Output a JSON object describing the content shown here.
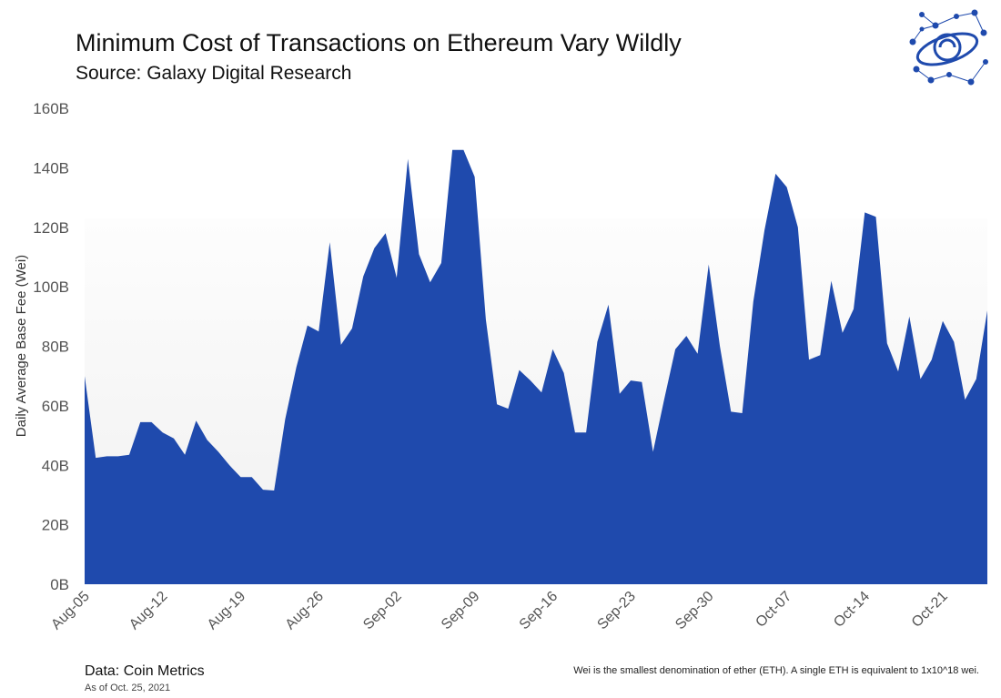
{
  "chart_data": {
    "type": "area",
    "title": "Minimum Cost of Transactions on Ethereum Vary Wildly",
    "subtitle": "Source: Galaxy Digital Research",
    "ylabel": "Daily Average Base Fee  (Wei)",
    "xlabel": "",
    "x_start": "2021-08-05",
    "x_end": "2021-10-25",
    "ylim": [
      0,
      160
    ],
    "y_unit": "B",
    "y_ticks": [
      "0B",
      "20B",
      "40B",
      "60B",
      "80B",
      "100B",
      "120B",
      "140B",
      "160B"
    ],
    "x_ticks": [
      "Aug-05",
      "Aug-12",
      "Aug-19",
      "Aug-26",
      "Sep-02",
      "Sep-09",
      "Sep-16",
      "Sep-23",
      "Sep-30",
      "Oct-07",
      "Oct-14",
      "Oct-21"
    ],
    "x_tick_interval_days": 7,
    "color": "#1f4aad",
    "values": [
      70,
      42.5,
      43,
      43,
      43.5,
      54.5,
      54.5,
      51,
      49,
      43.5,
      55,
      48.5,
      44.5,
      40,
      36,
      36,
      31.8,
      31.5,
      55.5,
      73,
      87,
      85,
      115,
      80.5,
      86,
      103.5,
      113,
      118,
      103,
      143,
      111,
      101.5,
      108,
      146,
      146,
      137,
      89,
      60.5,
      59,
      72,
      68.5,
      64.5,
      79,
      71,
      51,
      51,
      81.5,
      94,
      64,
      68.5,
      68,
      44.5,
      62,
      79,
      83.5,
      77.5,
      107.5,
      80,
      58,
      57.5,
      95,
      119,
      138,
      133.5,
      120,
      75.5,
      77,
      102,
      84.5,
      92.5,
      125,
      123.5,
      81,
      71.5,
      90,
      69,
      75.5,
      88.5,
      81.5,
      62,
      69,
      92
    ]
  },
  "footer": {
    "data_source": "Data: Coin Metrics",
    "as_of": "As of Oct. 25, 2021",
    "note": "Wei is the smallest denomination of ether (ETH). A single ETH is equivalent to 1x10^18 wei."
  }
}
